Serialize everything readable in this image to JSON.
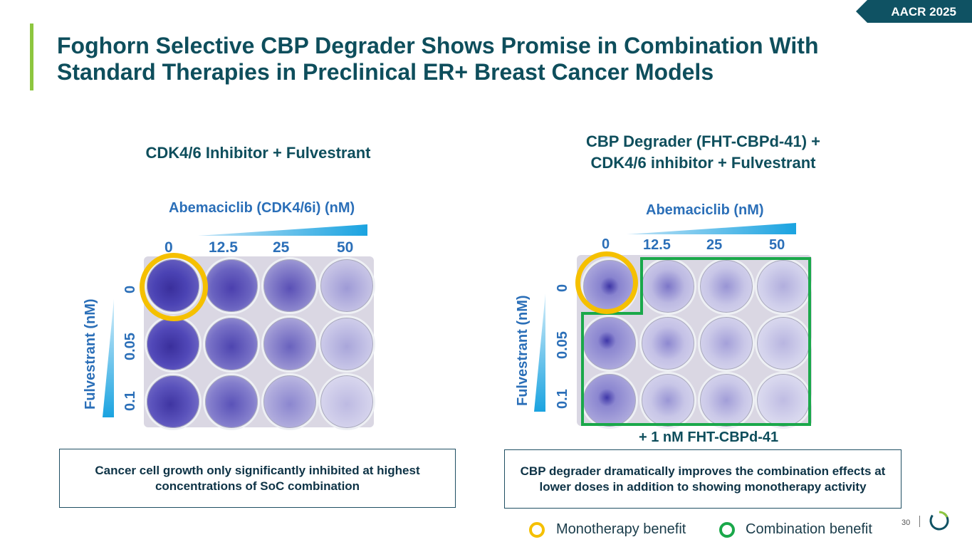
{
  "header": {
    "conference_tag": "AACR 2025",
    "title": "Foghorn Selective CBP Degrader Shows Promise in Combination With Standard Therapies in Preclinical ER+ Breast Cancer Models"
  },
  "left_panel": {
    "heading": "CDK4/6 Inhibitor + Fulvestrant",
    "x_axis_label": "Abemaciclib (CDK4/6i) (nM)",
    "x_ticks": [
      "0",
      "12.5",
      "25",
      "50"
    ],
    "y_axis_label": "Fulvestrant (nM)",
    "y_ticks": [
      "0",
      "0.05",
      "0.1"
    ],
    "caption": "Cancer cell growth only significantly inhibited at highest concentrations of SoC combination"
  },
  "right_panel": {
    "heading_line1": "CBP Degrader (FHT-CBPd-41) +",
    "heading_line2": "CDK4/6 inhibitor + Fulvestrant",
    "x_axis_label": "Abemaciclib (nM)",
    "x_ticks": [
      "0",
      "12.5",
      "25",
      "50"
    ],
    "y_axis_label": "Fulvestrant (nM)",
    "y_ticks": [
      "0",
      "0.05",
      "0.1"
    ],
    "combo_label": "+ 1 nM FHT-CBPd-41",
    "caption": "CBP degrader dramatically improves the combination effects at lower doses in addition to showing monotherapy activity"
  },
  "legend": {
    "mono_label": "Monotherapy benefit",
    "combo_label": "Combination benefit"
  },
  "footer": {
    "page_number": "30"
  },
  "colors": {
    "mono": "#f5c000",
    "combo": "#1aa84a",
    "brand": "#0f5263",
    "accent": "#8dc63f"
  }
}
